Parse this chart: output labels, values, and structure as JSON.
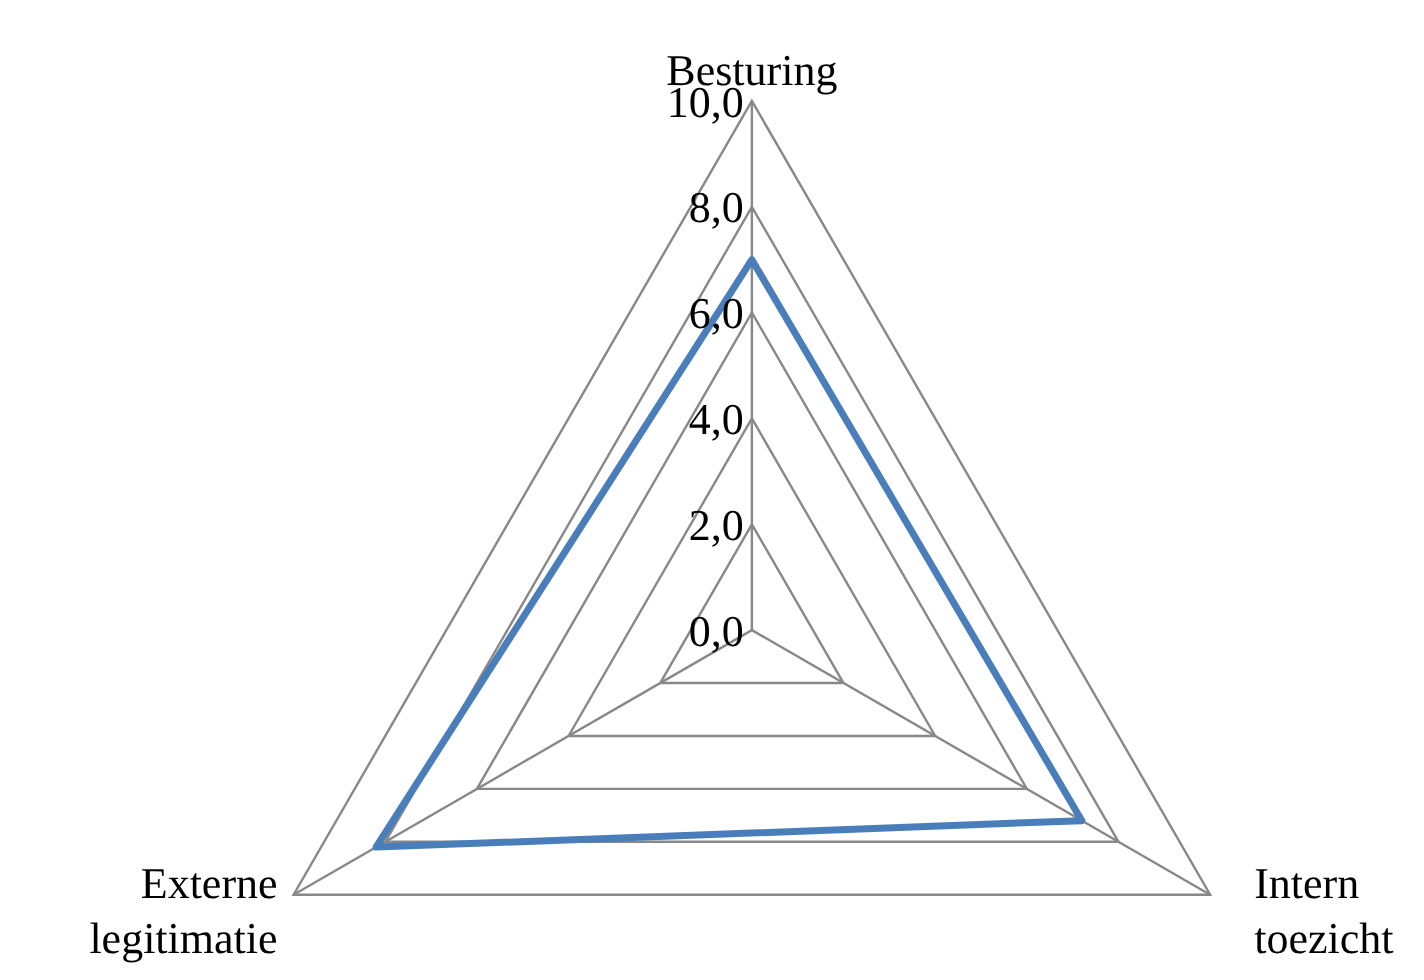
{
  "chart_data": {
    "type": "radar",
    "categories": [
      "Besturing",
      "Intern toezicht",
      "Externe legitimatie"
    ],
    "series": [
      {
        "color": "#4a7ebb",
        "values": [
          7.0,
          7.2,
          8.2
        ]
      }
    ],
    "ylim": [
      0,
      10
    ],
    "yticks": [
      {
        "value": 0,
        "label": "0,0"
      },
      {
        "value": 2,
        "label": "2,0"
      },
      {
        "value": 4,
        "label": "4,0"
      },
      {
        "value": 6,
        "label": "6,0"
      },
      {
        "value": 8,
        "label": "8,0"
      },
      {
        "value": 10,
        "label": "10,0"
      }
    ],
    "grid": true,
    "legend": false,
    "marker": "none"
  }
}
